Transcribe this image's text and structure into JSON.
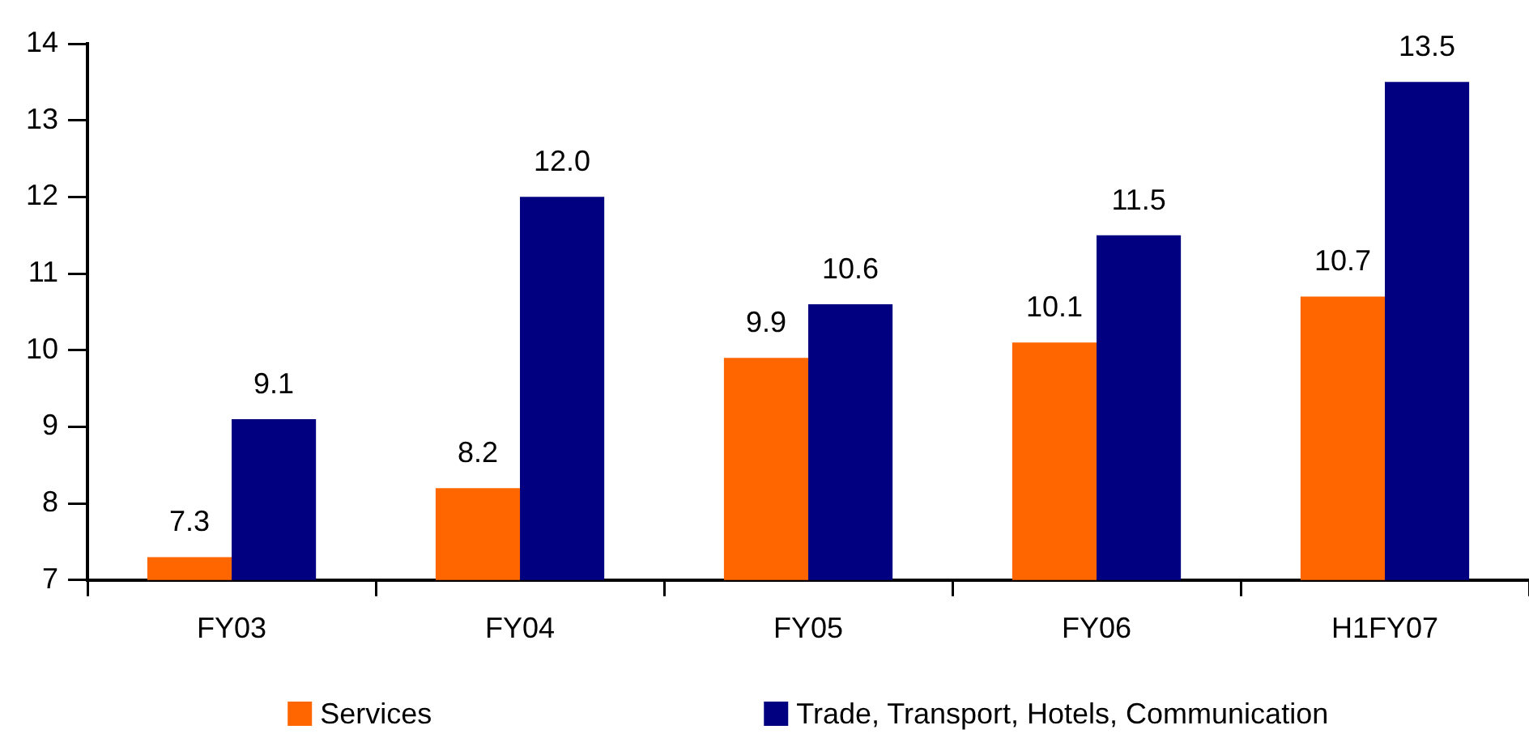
{
  "chart_data": {
    "type": "bar",
    "categories": [
      "FY03",
      "FY04",
      "FY05",
      "FY06",
      "H1FY07"
    ],
    "series": [
      {
        "name": "Services",
        "color": "#ff6600",
        "values": [
          7.3,
          8.2,
          9.9,
          10.1,
          10.7
        ],
        "value_labels": [
          "7.3",
          "8.2",
          "9.9",
          "10.1",
          "10.7"
        ]
      },
      {
        "name": "Trade, Transport, Hotels, Communication",
        "color": "#000080",
        "values": [
          9.1,
          12.0,
          10.6,
          11.5,
          13.5
        ],
        "value_labels": [
          "9.1",
          "12.0",
          "10.6",
          "11.5",
          "13.5"
        ]
      }
    ],
    "ylim": [
      7,
      14
    ],
    "yticks": [
      7,
      8,
      9,
      10,
      11,
      12,
      13,
      14
    ],
    "grid": false,
    "legend": "bottom"
  }
}
